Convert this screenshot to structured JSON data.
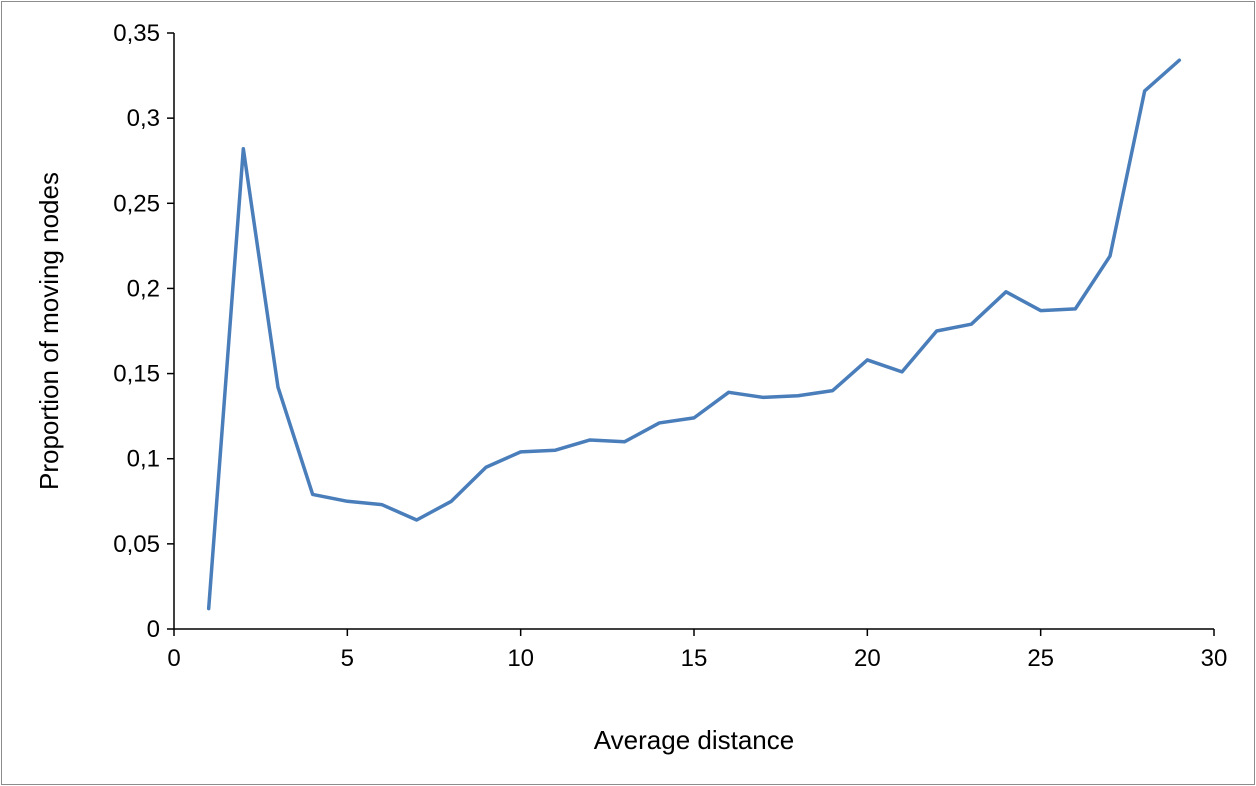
{
  "chart_data": {
    "type": "line",
    "title": "",
    "xlabel": "Average distance",
    "ylabel": "Proportion of moving nodes",
    "xlim": [
      0,
      30
    ],
    "ylim": [
      0,
      0.35
    ],
    "x_ticks": [
      0,
      5,
      10,
      15,
      20,
      25,
      30
    ],
    "y_ticks": [
      0,
      0.05,
      0.1,
      0.15,
      0.2,
      0.25,
      0.3,
      0.35
    ],
    "x_tick_labels": [
      "0",
      "5",
      "10",
      "15",
      "20",
      "25",
      "30"
    ],
    "y_tick_labels": [
      "0",
      "0,05",
      "0,1",
      "0,15",
      "0,2",
      "0,25",
      "0,3",
      "0,35"
    ],
    "grid": false,
    "legend": "none",
    "series": [
      {
        "color": "#4a7ebb",
        "x": [
          1,
          2,
          3,
          4,
          5,
          6,
          7,
          8,
          9,
          10,
          11,
          12,
          13,
          14,
          15,
          16,
          17,
          18,
          19,
          20,
          21,
          22,
          23,
          24,
          25,
          26,
          27,
          28,
          29
        ],
        "y": [
          0.012,
          0.282,
          0.142,
          0.079,
          0.075,
          0.073,
          0.064,
          0.075,
          0.095,
          0.104,
          0.105,
          0.111,
          0.11,
          0.121,
          0.124,
          0.139,
          0.136,
          0.137,
          0.14,
          0.158,
          0.151,
          0.175,
          0.179,
          0.198,
          0.187,
          0.188,
          0.219,
          0.316,
          0.334
        ]
      }
    ]
  }
}
